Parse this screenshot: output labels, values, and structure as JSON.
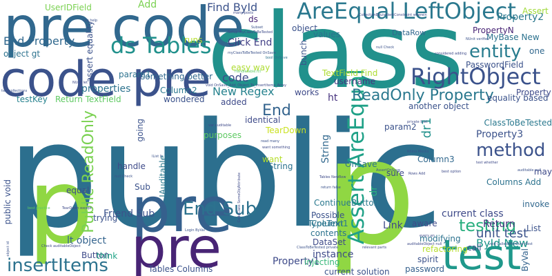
{
  "words": [
    {
      "text": "public",
      "color": "#2c6f8e"
    },
    {
      "text": "p",
      "color": "#90d743"
    },
    {
      "text": "class",
      "color": "#21918c"
    },
    {
      "text": "pre code",
      "color": "#31688e"
    },
    {
      "text": "code pre",
      "color": "#3b528b"
    },
    {
      "text": "p",
      "color": "#90d743"
    },
    {
      "text": "pre",
      "color": "#35608d"
    },
    {
      "text": "pre",
      "color": "#482475"
    },
    {
      "text": "test",
      "color": "#1f988b"
    },
    {
      "text": "AreEqual LeftObject",
      "color": "#2a788e"
    },
    {
      "text": "RightObject",
      "color": "#3b528b"
    },
    {
      "text": "Assert AreEqual",
      "color": "#1fa187"
    },
    {
      "text": "ds Tables",
      "color": "#21918c"
    },
    {
      "text": "insertItems",
      "color": "#2c728e"
    },
    {
      "text": "entity",
      "color": "#287c8e"
    },
    {
      "text": "method",
      "color": "#3b528b"
    },
    {
      "text": "testing",
      "color": "#29af7f"
    },
    {
      "text": "End Sub",
      "color": "#2c728e"
    },
    {
      "text": "Public ReadOnly",
      "color": "#7ad151"
    },
    {
      "text": "ReadOnly Property",
      "color": "#2a788e"
    },
    {
      "text": "End Property",
      "color": "#31688e"
    },
    {
      "text": "Find ById",
      "color": "#3b528b"
    },
    {
      "text": "Click End",
      "color": "#424086"
    },
    {
      "text": "New Regex",
      "color": "#26828e"
    },
    {
      "text": "code",
      "color": "#3e4a89"
    },
    {
      "text": "End",
      "color": "#33638d"
    },
    {
      "text": "Property2",
      "color": "#2a788e"
    },
    {
      "text": "PropertyN",
      "color": "#482475"
    },
    {
      "text": "properties",
      "color": "#2c728e"
    },
    {
      "text": "Return TextField",
      "color": "#5ec962"
    },
    {
      "text": "unit test",
      "color": "#3b528b"
    },
    {
      "text": "current class",
      "color": "#3e4a89"
    },
    {
      "text": "Column3",
      "color": "#31688e"
    },
    {
      "text": "Property3",
      "color": "#3b528b"
    },
    {
      "text": "ById New",
      "color": "#1f988b"
    },
    {
      "text": "Property1",
      "color": "#3e4a89"
    },
    {
      "text": "UserIDField",
      "color": "#7ad151"
    },
    {
      "text": "Add",
      "color": "#7ad151"
    },
    {
      "text": "object gt",
      "color": "#2c728e"
    },
    {
      "text": "TextField Find",
      "color": "#addc30"
    },
    {
      "text": "username",
      "color": "#453781"
    },
    {
      "text": "Column2",
      "color": "#2a788e"
    },
    {
      "text": "PasswordField",
      "color": "#3b528b"
    },
    {
      "text": "ClassToBeTested",
      "color": "#2a788e"
    },
    {
      "text": "Columns Add",
      "color": "#2c728e"
    },
    {
      "text": "Link",
      "color": "#3e4a89"
    },
    {
      "text": "Return",
      "color": "#46327e"
    },
    {
      "text": "Button",
      "color": "#3e4a89"
    },
    {
      "text": "lt object",
      "color": "#33638d"
    },
    {
      "text": "Friend Sub",
      "color": "#3b528b"
    },
    {
      "text": "Tables Columns",
      "color": "#3b528b"
    },
    {
      "text": "instance",
      "color": "#3e4a89"
    },
    {
      "text": "DataSet",
      "color": "#3e4a89"
    },
    {
      "text": "TypeText",
      "color": "#2c728e"
    },
    {
      "text": "Column1",
      "color": "#2a788e"
    },
    {
      "text": "String",
      "color": "#31688e"
    },
    {
      "text": "dr",
      "color": "#29af7f"
    },
    {
      "text": "dr1",
      "color": "#21918c"
    },
    {
      "text": "ContinueButton",
      "color": "#2a788e"
    },
    {
      "text": "invoke",
      "color": "#31688e"
    },
    {
      "text": "public void",
      "color": "#3b528b"
    },
    {
      "text": "MyBase New",
      "color": "#2c728e"
    },
    {
      "text": "ByVal",
      "color": "#33638d"
    },
    {
      "text": "IAuditable",
      "color": "#2a788e"
    },
    {
      "text": "DataRow",
      "color": "#31688e"
    },
    {
      "text": "TearDown",
      "color": "#cae11f"
    },
    {
      "text": "identical",
      "color": "#3e4a89"
    },
    {
      "text": "spirit",
      "color": "#3b528b"
    },
    {
      "text": "password",
      "color": "#35608d"
    },
    {
      "text": "current solution",
      "color": "#3b528b"
    },
    {
      "text": "refactoring",
      "color": "#b5de2b"
    },
    {
      "text": "OnSave",
      "color": "#2c728e"
    },
    {
      "text": "param2",
      "color": "#3b528b"
    },
    {
      "text": "ToString",
      "color": "#2c728e"
    },
    {
      "text": "equal",
      "color": "#3e4a89"
    },
    {
      "text": "handle",
      "color": "#3e4a89"
    },
    {
      "text": "trying",
      "color": "#3b528b"
    },
    {
      "text": "think",
      "color": "#20a386"
    },
    {
      "text": "Sub",
      "color": "#3b528b"
    },
    {
      "text": "added",
      "color": "#3e4a89"
    },
    {
      "text": "purposes",
      "color": "#5ec962"
    },
    {
      "text": "wondered",
      "color": "#3b528b"
    },
    {
      "text": "testKey",
      "color": "#26828e"
    },
    {
      "text": "equality based",
      "color": "#3b528b"
    },
    {
      "text": "another object",
      "color": "#3b528b"
    },
    {
      "text": "modifying",
      "color": "#2c728e"
    },
    {
      "text": "contents",
      "color": "#2c728e"
    },
    {
      "text": "Possible",
      "color": "#3b528b"
    },
    {
      "text": "injecting",
      "color": "#35b779"
    },
    {
      "text": "aware",
      "color": "#3e4a89"
    },
    {
      "text": "call",
      "color": "#3e4a89"
    },
    {
      "text": "List",
      "color": "#3b528b"
    },
    {
      "text": "may",
      "color": "#3e4a89"
    },
    {
      "text": "one",
      "color": "#31688e"
    },
    {
      "text": "Property",
      "color": "#3e4a89"
    },
    {
      "text": "ht",
      "color": "#46327e"
    },
    {
      "text": "works",
      "color": "#3e4a89"
    },
    {
      "text": "sure",
      "color": "#3e4a89"
    },
    {
      "text": "want",
      "color": "#b5de2b"
    },
    {
      "text": "going",
      "color": "#3b528b"
    },
    {
      "text": "param1",
      "color": "#2c728e"
    },
    {
      "text": "something better",
      "color": "#31688e"
    },
    {
      "text": "runs",
      "color": "#b5de2b"
    },
    {
      "text": "values",
      "color": "#2c728e"
    },
    {
      "text": "object",
      "color": "#3b528b"
    },
    {
      "text": "bunch",
      "color": "#3b528b"
    },
    {
      "text": "ds",
      "color": "#482475"
    },
    {
      "text": "Assert",
      "color": "#a0da39"
    },
    {
      "text": "assert equality",
      "color": "#3b528b"
    },
    {
      "text": "easy way",
      "color": "#addc30"
    },
    {
      "text": "Setup myClassToBeTested",
      "color": "#3e4a89"
    },
    {
      "text": "myClassToBeTested OnSave",
      "color": "#3b528b"
    },
    {
      "text": "bool OnSave",
      "color": "#2c728e"
    },
    {
      "text": "many posts",
      "color": "#3e4a89"
    },
    {
      "text": "Subset",
      "color": "#3b528b"
    },
    {
      "text": "CollectionEquivalentConstraint wherein",
      "color": "#3e4a89"
    },
    {
      "text": "NUnit verifies",
      "color": "#3b528b"
    },
    {
      "text": "considered adding",
      "color": "#3e4a89"
    },
    {
      "text": "null Check",
      "color": "#3b528b"
    },
    {
      "text": "best option",
      "color": "#3e4a89"
    },
    {
      "text": "auditable null",
      "color": "#3b528b"
    },
    {
      "text": "test whether",
      "color": "#3e4a89"
    },
    {
      "text": "Rhino Mocks",
      "color": "#3b528b"
    },
    {
      "text": "private IList",
      "color": "#3e4a89"
    },
    {
      "text": "Tables NewRow",
      "color": "#3e4a89"
    },
    {
      "text": "return false",
      "color": "#3b528b"
    },
    {
      "text": "Rows Add",
      "color": "#3e4a89"
    },
    {
      "text": "void CalledAfterEveryTest",
      "color": "#3b528b"
    },
    {
      "text": "relevant parts",
      "color": "#3e4a89"
    },
    {
      "text": "ClassToBeTested private",
      "color": "#3b528b"
    },
    {
      "text": "Check auditableObject",
      "color": "#3e4a89"
    },
    {
      "text": "best practice",
      "color": "#5ec962"
    },
    {
      "text": "Handletable.fct",
      "color": "#5ec962"
    },
    {
      "text": "Login ByVal",
      "color": "#3b528b"
    },
    {
      "text": "void OnSave_Add_Object_To_InsertItems_Array",
      "color": "#3e4a89"
    },
    {
      "text": "var auditable",
      "color": "#3e4a89"
    },
    {
      "text": "IList It",
      "color": "#3b528b"
    },
    {
      "text": "read many",
      "color": "#3b528b"
    },
    {
      "text": "want something",
      "color": "#3e4a89"
    },
    {
      "text": "every en",
      "color": "#3e4a89"
    },
    {
      "text": "see help",
      "color": "#3b528b"
    },
    {
      "text": "NUnit let",
      "color": "#3e4a89"
    },
    {
      "text": "two collections",
      "color": "#3b528b"
    },
    {
      "text": "TearDown except",
      "color": "#3e4a89"
    },
    {
      "text": "object id",
      "color": "#3b528b"
    },
    {
      "text": "CodeClass SomeObjAttribute",
      "color": "#3e4a89"
    },
    {
      "text": "AssertOnSave",
      "color": "#3b528b"
    },
    {
      "text": "auditableObject null",
      "color": "#3e4a89"
    },
    {
      "text": "null Check",
      "color": "#3b528b"
    }
  ]
}
